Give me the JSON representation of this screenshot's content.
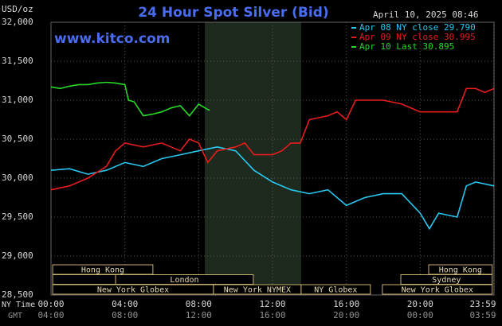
{
  "chart_data": {
    "type": "line",
    "title": "24 Hour Spot Silver (Bid)",
    "timestamp": "April 10, 2025 08:46",
    "y_label": "USD/oz",
    "watermark": "www.kitco.com",
    "xlim": [
      0,
      24
    ],
    "xticks": [
      {
        "value": 0,
        "label": "00:00"
      },
      {
        "value": 4,
        "label": "04:00"
      },
      {
        "value": 8,
        "label": "08:00"
      },
      {
        "value": 12,
        "label": "12:00"
      },
      {
        "value": 16,
        "label": "16:00"
      },
      {
        "value": 20,
        "label": "20:00"
      },
      {
        "value": 23.98,
        "label": "23:59"
      }
    ],
    "x_row_label": "NY Time",
    "x2_row_label": "GMT",
    "x2_labels": [
      "04:00",
      "08:00",
      "12:00",
      "16:00",
      "20:00",
      "00:00",
      "03:59"
    ],
    "ylim": [
      28500,
      32000
    ],
    "yticks": [
      {
        "value": 28500,
        "label": "28,500"
      },
      {
        "value": 29000,
        "label": "29,000"
      },
      {
        "value": 29500,
        "label": "29,500"
      },
      {
        "value": 30000,
        "label": "30,000"
      },
      {
        "value": 30500,
        "label": "30,500"
      },
      {
        "value": 31000,
        "label": "31,000"
      },
      {
        "value": 31500,
        "label": "31,500"
      },
      {
        "value": 32000,
        "label": "32,000"
      }
    ],
    "grid": true,
    "shade_x": [
      8.33,
      13.55
    ],
    "series": [
      {
        "name": "Apr 08 NY close 29.790",
        "color": "#29c8f0",
        "x": [
          0,
          1,
          2,
          3,
          4,
          5,
          6,
          7,
          8,
          9,
          10,
          11,
          12,
          13,
          14,
          15,
          16,
          17,
          18,
          19,
          20,
          20.5,
          21,
          22,
          22.5,
          23,
          24
        ],
        "values": [
          30100,
          30120,
          30050,
          30100,
          30200,
          30150,
          30250,
          30300,
          30350,
          30400,
          30350,
          30100,
          29950,
          29850,
          29800,
          29850,
          29650,
          29750,
          29800,
          29800,
          29550,
          29350,
          29550,
          29500,
          29900,
          29950,
          29900
        ]
      },
      {
        "name": "Apr 09 NY close 30.995",
        "color": "#e81c1c",
        "x": [
          0,
          1,
          2,
          3,
          3.5,
          4,
          5,
          6,
          7,
          7.5,
          8,
          8.5,
          9,
          10,
          10.5,
          11,
          12,
          12.5,
          13,
          13.5,
          14,
          15,
          15.5,
          16,
          16.5,
          17,
          18,
          19,
          20,
          21,
          22,
          22.5,
          23,
          23.5,
          24
        ],
        "values": [
          29850,
          29900,
          30000,
          30150,
          30350,
          30450,
          30400,
          30450,
          30350,
          30500,
          30450,
          30200,
          30350,
          30400,
          30450,
          30300,
          30300,
          30350,
          30450,
          30450,
          30750,
          30800,
          30850,
          30750,
          31000,
          31000,
          31000,
          30950,
          30850,
          30850,
          30850,
          31150,
          31150,
          31100,
          31150
        ]
      },
      {
        "name": "Apr 10 Last 30.895",
        "color": "#28d828",
        "x": [
          0,
          0.5,
          1,
          1.5,
          2,
          2.5,
          3,
          3.5,
          4,
          4.2,
          4.5,
          5,
          5.5,
          6,
          6.5,
          7,
          7.5,
          8,
          8.5,
          8.6
        ],
        "values": [
          31170,
          31150,
          31180,
          31200,
          31200,
          31220,
          31230,
          31220,
          31200,
          31000,
          30980,
          30800,
          30820,
          30850,
          30900,
          30930,
          30800,
          30950,
          30880,
          30870
        ]
      }
    ],
    "sessions": [
      [
        {
          "label": "Hong Kong",
          "start": 0.09,
          "end": 5.52
        },
        {
          "label": "Hong Kong",
          "start": 20.46,
          "end": 23.9
        }
      ],
      [
        {
          "label": null,
          "start": 0.09,
          "end": 3.5
        },
        {
          "label": "London",
          "start": 3.5,
          "end": 10.96
        },
        {
          "label": "Sydney",
          "start": 18.95,
          "end": 23.9
        }
      ],
      [
        {
          "label": "New York Globex",
          "start": 0.09,
          "end": 8.8
        },
        {
          "label": "New York NYMEX",
          "start": 8.8,
          "end": 13.55
        },
        {
          "label": "NY Globex",
          "start": 13.55,
          "end": 17.3
        },
        {
          "label": "New York Globex",
          "start": 17.95,
          "end": 23.9
        }
      ]
    ]
  }
}
